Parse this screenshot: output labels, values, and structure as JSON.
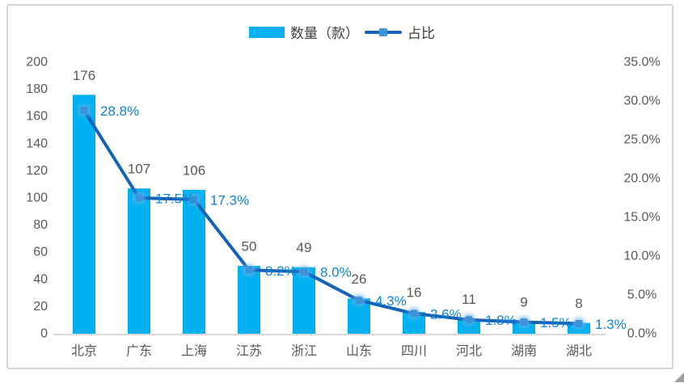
{
  "chart_data": {
    "type": "combo",
    "categories": [
      "北京",
      "广东",
      "上海",
      "江苏",
      "浙江",
      "山东",
      "四川",
      "河北",
      "湖南",
      "湖北"
    ],
    "series": [
      {
        "name": "数量（款）",
        "chart_type": "bar",
        "axis": "left",
        "color": "#00b1f2",
        "values": [
          176,
          107,
          106,
          50,
          49,
          26,
          16,
          11,
          9,
          8
        ],
        "labels": [
          "176",
          "107",
          "106",
          "50",
          "49",
          "26",
          "16",
          "11",
          "9",
          "8"
        ]
      },
      {
        "name": "占比",
        "chart_type": "line",
        "axis": "right",
        "color": "#1463b8",
        "marker_color": "#3e92dc",
        "values": [
          28.8,
          17.5,
          17.3,
          8.2,
          8.0,
          4.3,
          2.6,
          1.8,
          1.5,
          1.3
        ],
        "labels": [
          "28.8%",
          "17.5%",
          "17.3%",
          "8.2%",
          "8.0%",
          "4.3%",
          "2.6%",
          "1.8%",
          "1.5%",
          "1.3%"
        ]
      }
    ],
    "left_axis": {
      "min": 0,
      "max": 200,
      "ticks": [
        "0",
        "20",
        "40",
        "60",
        "80",
        "100",
        "120",
        "140",
        "160",
        "180",
        "200"
      ]
    },
    "right_axis": {
      "min": 0,
      "max": 35,
      "ticks": [
        "0.0%",
        "5.0%",
        "10.0%",
        "15.0%",
        "20.0%",
        "25.0%",
        "30.0%",
        "35.0%"
      ]
    },
    "legend_position": "top",
    "grid": false,
    "title": "",
    "xlabel": "",
    "ylabel": "",
    "colors": {
      "axis_text": "#595959",
      "bar_label": "#595959",
      "pct_label": "#0a85d9",
      "legend_text": "#404040",
      "card_border": "#d5d5d5",
      "baseline": "#d9d9d9"
    }
  }
}
